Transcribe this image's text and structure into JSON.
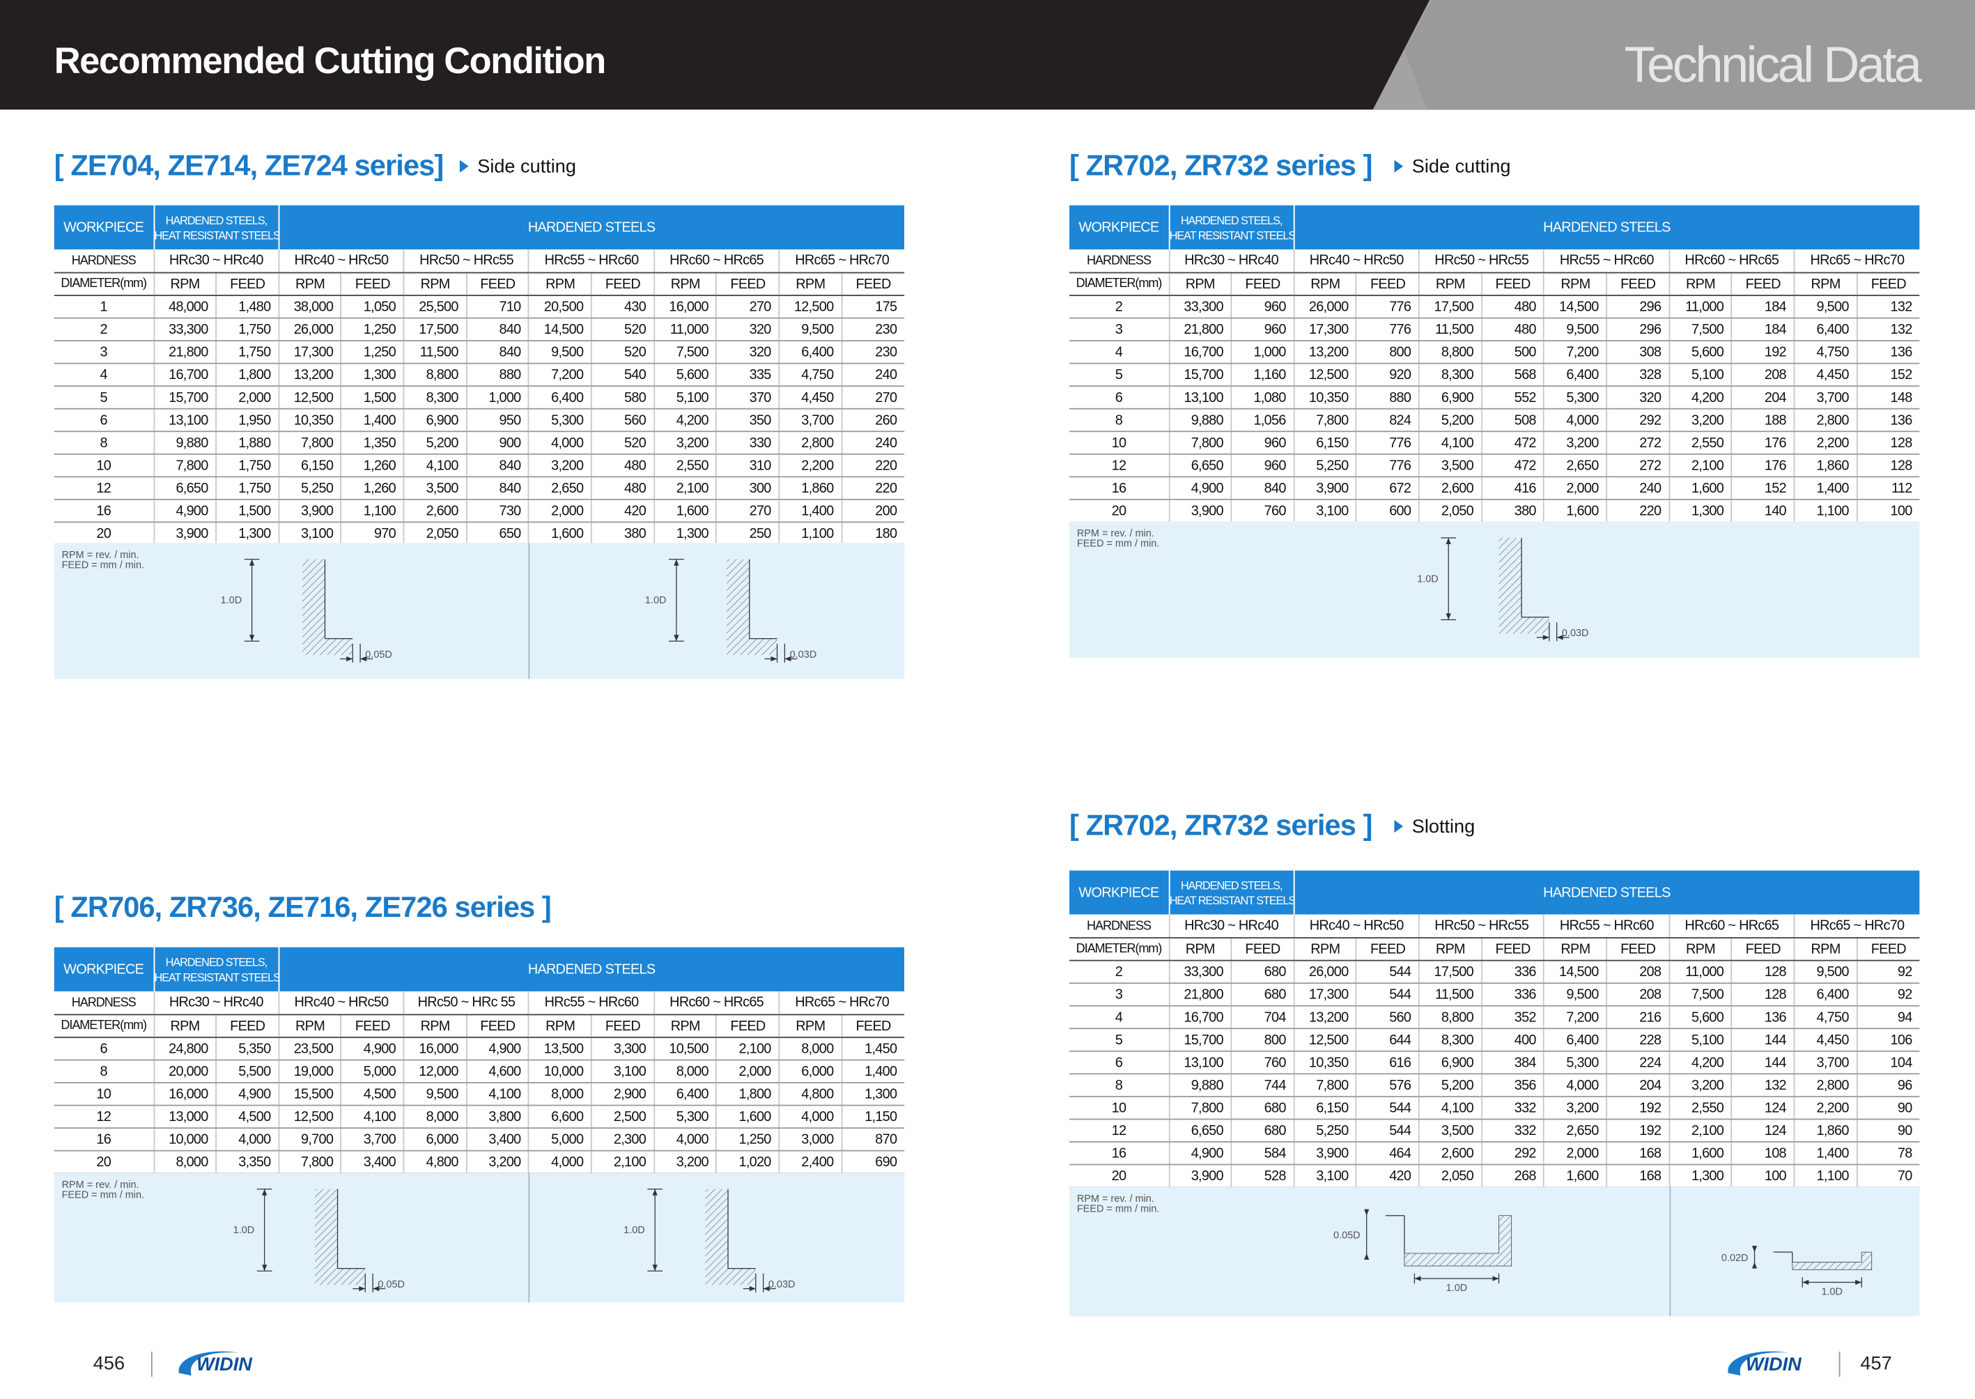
{
  "header": {
    "title": "Recommended Cutting Condition",
    "section": "Technical Data"
  },
  "tables": [
    {
      "title": "[ ZE704, ZE714, ZE724 series]",
      "subtitle": "Side cutting",
      "workpiece_label": "WORKPIECE",
      "workpiece_first": [
        "HARDENED STEELS,",
        "HEAT RESISTANT STEELS"
      ],
      "workpiece_rest": "HARDENED STEELS",
      "hardness_label": "HARDNESS",
      "hardness": [
        "HRc30 ~ HRc40",
        "HRc40 ~ HRc50",
        "HRc50 ~ HRc55",
        "HRc55 ~ HRc60",
        "HRc60 ~ HRc65",
        "HRc65 ~ HRc70"
      ],
      "diameter_label": "DIAMETER(mm)",
      "columns": [
        "RPM",
        "FEED",
        "RPM",
        "FEED",
        "RPM",
        "FEED",
        "RPM",
        "FEED",
        "RPM",
        "FEED",
        "RPM",
        "FEED"
      ],
      "rows": [
        [
          "1",
          "48,000",
          "1,480",
          "38,000",
          "1,050",
          "25,500",
          "710",
          "20,500",
          "430",
          "16,000",
          "270",
          "12,500",
          "175"
        ],
        [
          "2",
          "33,300",
          "1,750",
          "26,000",
          "1,250",
          "17,500",
          "840",
          "14,500",
          "520",
          "11,000",
          "320",
          "9,500",
          "230"
        ],
        [
          "3",
          "21,800",
          "1,750",
          "17,300",
          "1,250",
          "11,500",
          "840",
          "9,500",
          "520",
          "7,500",
          "320",
          "6,400",
          "230"
        ],
        [
          "4",
          "16,700",
          "1,800",
          "13,200",
          "1,300",
          "8,800",
          "880",
          "7,200",
          "540",
          "5,600",
          "335",
          "4,750",
          "240"
        ],
        [
          "5",
          "15,700",
          "2,000",
          "12,500",
          "1,500",
          "8,300",
          "1,000",
          "6,400",
          "580",
          "5,100",
          "370",
          "4,450",
          "270"
        ],
        [
          "6",
          "13,100",
          "1,950",
          "10,350",
          "1,400",
          "6,900",
          "950",
          "5,300",
          "560",
          "4,200",
          "350",
          "3,700",
          "260"
        ],
        [
          "8",
          "9,880",
          "1,880",
          "7,800",
          "1,350",
          "5,200",
          "900",
          "4,000",
          "520",
          "3,200",
          "330",
          "2,800",
          "240"
        ],
        [
          "10",
          "7,800",
          "1,750",
          "6,150",
          "1,260",
          "4,100",
          "840",
          "3,200",
          "480",
          "2,550",
          "310",
          "2,200",
          "220"
        ],
        [
          "12",
          "6,650",
          "1,750",
          "5,250",
          "1,260",
          "3,500",
          "840",
          "2,650",
          "480",
          "2,100",
          "300",
          "1,860",
          "220"
        ],
        [
          "16",
          "4,900",
          "1,500",
          "3,900",
          "1,100",
          "2,600",
          "730",
          "2,000",
          "420",
          "1,600",
          "270",
          "1,400",
          "200"
        ],
        [
          "20",
          "3,900",
          "1,300",
          "3,100",
          "970",
          "2,050",
          "650",
          "1,600",
          "380",
          "1,300",
          "250",
          "1,100",
          "180"
        ]
      ],
      "notes": [
        "RPM = rev. / min.",
        "FEED = mm / min."
      ],
      "diagrams": [
        [
          "1.0D",
          "0.05D"
        ],
        [
          "1.0D",
          "0.03D"
        ]
      ]
    },
    {
      "title": "[ ZR702, ZR732 series ]",
      "subtitle": "Side cutting",
      "workpiece_label": "WORKPIECE",
      "workpiece_first": [
        "HARDENED STEELS,",
        "HEAT RESISTANT STEELS"
      ],
      "workpiece_rest": "HARDENED STEELS",
      "hardness_label": "HARDNESS",
      "hardness": [
        "HRc30 ~ HRc40",
        "HRc40 ~ HRc50",
        "HRc50 ~ HRc55",
        "HRc55 ~ HRc60",
        "HRc60 ~ HRc65",
        "HRc65 ~ HRc70"
      ],
      "diameter_label": "DIAMETER(mm)",
      "columns": [
        "RPM",
        "FEED",
        "RPM",
        "FEED",
        "RPM",
        "FEED",
        "RPM",
        "FEED",
        "RPM",
        "FEED",
        "RPM",
        "FEED"
      ],
      "rows": [
        [
          "2",
          "33,300",
          "960",
          "26,000",
          "776",
          "17,500",
          "480",
          "14,500",
          "296",
          "11,000",
          "184",
          "9,500",
          "132"
        ],
        [
          "3",
          "21,800",
          "960",
          "17,300",
          "776",
          "11,500",
          "480",
          "9,500",
          "296",
          "7,500",
          "184",
          "6,400",
          "132"
        ],
        [
          "4",
          "16,700",
          "1,000",
          "13,200",
          "800",
          "8,800",
          "500",
          "7,200",
          "308",
          "5,600",
          "192",
          "4,750",
          "136"
        ],
        [
          "5",
          "15,700",
          "1,160",
          "12,500",
          "920",
          "8,300",
          "568",
          "6,400",
          "328",
          "5,100",
          "208",
          "4,450",
          "152"
        ],
        [
          "6",
          "13,100",
          "1,080",
          "10,350",
          "880",
          "6,900",
          "552",
          "5,300",
          "320",
          "4,200",
          "204",
          "3,700",
          "148"
        ],
        [
          "8",
          "9,880",
          "1,056",
          "7,800",
          "824",
          "5,200",
          "508",
          "4,000",
          "292",
          "3,200",
          "188",
          "2,800",
          "136"
        ],
        [
          "10",
          "7,800",
          "960",
          "6,150",
          "776",
          "4,100",
          "472",
          "3,200",
          "272",
          "2,550",
          "176",
          "2,200",
          "128"
        ],
        [
          "12",
          "6,650",
          "960",
          "5,250",
          "776",
          "3,500",
          "472",
          "2,650",
          "272",
          "2,100",
          "176",
          "1,860",
          "128"
        ],
        [
          "16",
          "4,900",
          "840",
          "3,900",
          "672",
          "2,600",
          "416",
          "2,000",
          "240",
          "1,600",
          "152",
          "1,400",
          "112"
        ],
        [
          "20",
          "3,900",
          "760",
          "3,100",
          "600",
          "2,050",
          "380",
          "1,600",
          "220",
          "1,300",
          "140",
          "1,100",
          "100"
        ]
      ],
      "notes": [
        "RPM = rev. / min.",
        "FEED = mm / min."
      ],
      "diagrams": [
        [
          "1.0D",
          "0.03D"
        ]
      ]
    },
    {
      "title": "[ ZR706, ZR736, ZE716, ZE726 series ]",
      "workpiece_label": "WORKPIECE",
      "workpiece_first": [
        "HARDENED STEELS,",
        "HEAT RESISTANT STEELS"
      ],
      "workpiece_rest": "HARDENED STEELS",
      "hardness_label": "HARDNESS",
      "hardness": [
        "HRc30 ~ HRc40",
        "HRc40 ~ HRc50",
        "HRc50 ~ HRc 55",
        "HRc55 ~ HRc60",
        "HRc60 ~ HRc65",
        "HRc65 ~ HRc70"
      ],
      "diameter_label": "DIAMETER(mm)",
      "columns": [
        "RPM",
        "FEED",
        "RPM",
        "FEED",
        "RPM",
        "FEED",
        "RPM",
        "FEED",
        "RPM",
        "FEED",
        "RPM",
        "FEED"
      ],
      "rows": [
        [
          "6",
          "24,800",
          "5,350",
          "23,500",
          "4,900",
          "16,000",
          "4,900",
          "13,500",
          "3,300",
          "10,500",
          "2,100",
          "8,000",
          "1,450"
        ],
        [
          "8",
          "20,000",
          "5,500",
          "19,000",
          "5,000",
          "12,000",
          "4,600",
          "10,000",
          "3,100",
          "8,000",
          "2,000",
          "6,000",
          "1,400"
        ],
        [
          "10",
          "16,000",
          "4,900",
          "15,500",
          "4,500",
          "9,500",
          "4,100",
          "8,000",
          "2,900",
          "6,400",
          "1,800",
          "4,800",
          "1,300"
        ],
        [
          "12",
          "13,000",
          "4,500",
          "12,500",
          "4,100",
          "8,000",
          "3,800",
          "6,600",
          "2,500",
          "5,300",
          "1,600",
          "4,000",
          "1,150"
        ],
        [
          "16",
          "10,000",
          "4,000",
          "9,700",
          "3,700",
          "6,000",
          "3,400",
          "5,000",
          "2,300",
          "4,000",
          "1,250",
          "3,000",
          "870"
        ],
        [
          "20",
          "8,000",
          "3,350",
          "7,800",
          "3,400",
          "4,800",
          "3,200",
          "4,000",
          "2,100",
          "3,200",
          "1,020",
          "2,400",
          "690"
        ]
      ],
      "notes": [
        "RPM = rev. / min.",
        "FEED = mm / min."
      ],
      "diagrams": [
        [
          "1.0D",
          "0.05D"
        ],
        [
          "1.0D",
          "0.03D"
        ]
      ]
    },
    {
      "title": "[ ZR702, ZR732 series ]",
      "subtitle": "Slotting",
      "workpiece_label": "WORKPIECE",
      "workpiece_first": [
        "HARDENED STEELS,",
        "HEAT RESISTANT STEELS"
      ],
      "workpiece_rest": "HARDENED STEELS",
      "hardness_label": "HARDNESS",
      "hardness": [
        "HRc30 ~ HRc40",
        "HRc40 ~ HRc50",
        "HRc50 ~ HRc55",
        "HRc55 ~ HRc60",
        "HRc60 ~ HRc65",
        "HRc65 ~ HRc70"
      ],
      "diameter_label": "DIAMETER(mm)",
      "columns": [
        "RPM",
        "FEED",
        "RPM",
        "FEED",
        "RPM",
        "FEED",
        "RPM",
        "FEED",
        "RPM",
        "FEED",
        "RPM",
        "FEED"
      ],
      "rows": [
        [
          "2",
          "33,300",
          "680",
          "26,000",
          "544",
          "17,500",
          "336",
          "14,500",
          "208",
          "11,000",
          "128",
          "9,500",
          "92"
        ],
        [
          "3",
          "21,800",
          "680",
          "17,300",
          "544",
          "11,500",
          "336",
          "9,500",
          "208",
          "7,500",
          "128",
          "6,400",
          "92"
        ],
        [
          "4",
          "16,700",
          "704",
          "13,200",
          "560",
          "8,800",
          "352",
          "7,200",
          "216",
          "5,600",
          "136",
          "4,750",
          "94"
        ],
        [
          "5",
          "15,700",
          "800",
          "12,500",
          "644",
          "8,300",
          "400",
          "6,400",
          "228",
          "5,100",
          "144",
          "4,450",
          "106"
        ],
        [
          "6",
          "13,100",
          "760",
          "10,350",
          "616",
          "6,900",
          "384",
          "5,300",
          "224",
          "4,200",
          "144",
          "3,700",
          "104"
        ],
        [
          "8",
          "9,880",
          "744",
          "7,800",
          "576",
          "5,200",
          "356",
          "4,000",
          "204",
          "3,200",
          "132",
          "2,800",
          "96"
        ],
        [
          "10",
          "7,800",
          "680",
          "6,150",
          "544",
          "4,100",
          "332",
          "3,200",
          "192",
          "2,550",
          "124",
          "2,200",
          "90"
        ],
        [
          "12",
          "6,650",
          "680",
          "5,250",
          "544",
          "3,500",
          "332",
          "2,650",
          "192",
          "2,100",
          "124",
          "1,860",
          "90"
        ],
        [
          "16",
          "4,900",
          "584",
          "3,900",
          "464",
          "2,600",
          "292",
          "2,000",
          "168",
          "1,600",
          "108",
          "1,400",
          "78"
        ],
        [
          "20",
          "3,900",
          "528",
          "3,100",
          "420",
          "2,050",
          "268",
          "1,600",
          "168",
          "1,300",
          "100",
          "1,100",
          "70"
        ]
      ],
      "notes": [
        "RPM = rev. / min.",
        "FEED = mm / min."
      ],
      "diagrams": [
        [
          "0.05D",
          "1.0D"
        ],
        [
          "0.02D",
          "1.0D"
        ]
      ]
    }
  ],
  "footer": {
    "left": {
      "page": "456",
      "logo": "WIDIN"
    },
    "right": {
      "page": "457",
      "logo": "WIDIN"
    }
  }
}
